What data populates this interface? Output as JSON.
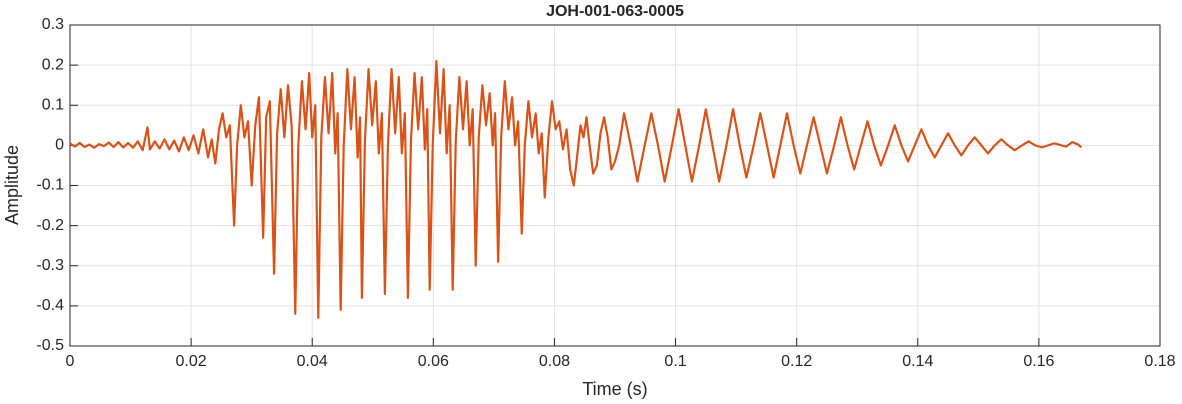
{
  "chart_data": {
    "type": "line",
    "title": "JOH-001-063-0005",
    "x_label": "Time (s)",
    "y_label": "Amplitude",
    "color": "#d95319",
    "grid": true,
    "xlim": [
      0,
      0.18
    ],
    "xticks": [
      0,
      0.02,
      0.04,
      0.06,
      0.08,
      0.1,
      0.12,
      0.14,
      0.16,
      0.18
    ],
    "ylim": [
      -0.5,
      0.3
    ],
    "yticks": [
      -0.5,
      -0.4,
      -0.3,
      -0.2,
      -0.1,
      0,
      0.1,
      0.2,
      0.3
    ],
    "x": [
      0,
      0.0008,
      0.0016,
      0.0024,
      0.0032,
      0.004,
      0.0048,
      0.0056,
      0.0064,
      0.0072,
      0.008,
      0.0088,
      0.0096,
      0.0104,
      0.0112,
      0.012,
      0.0128,
      0.0132,
      0.014,
      0.0148,
      0.0156,
      0.0164,
      0.0172,
      0.018,
      0.0188,
      0.0196,
      0.0204,
      0.0212,
      0.022,
      0.0228,
      0.0234,
      0.024,
      0.0246,
      0.0252,
      0.0258,
      0.0264,
      0.0271,
      0.0276,
      0.0282,
      0.0288,
      0.0294,
      0.03,
      0.0306,
      0.0312,
      0.0319,
      0.0324,
      0.033,
      0.0337,
      0.0342,
      0.0348,
      0.0354,
      0.036,
      0.0366,
      0.0372,
      0.0377,
      0.0383,
      0.0389,
      0.0395,
      0.04,
      0.0405,
      0.041,
      0.0415,
      0.0421,
      0.0427,
      0.0433,
      0.0438,
      0.0442,
      0.0447,
      0.0452,
      0.0458,
      0.0464,
      0.047,
      0.0475,
      0.0479,
      0.0482,
      0.0487,
      0.0493,
      0.0499,
      0.0505,
      0.051,
      0.0515,
      0.052,
      0.0525,
      0.0531,
      0.0537,
      0.0543,
      0.0548,
      0.0553,
      0.0558,
      0.0563,
      0.0569,
      0.0575,
      0.0581,
      0.0586,
      0.059,
      0.0594,
      0.0599,
      0.0605,
      0.0611,
      0.0617,
      0.0622,
      0.0627,
      0.0632,
      0.0637,
      0.0643,
      0.0649,
      0.0655,
      0.066,
      0.0665,
      0.067,
      0.0675,
      0.0681,
      0.0687,
      0.0693,
      0.0698,
      0.0702,
      0.0707,
      0.0712,
      0.0718,
      0.0724,
      0.073,
      0.0735,
      0.074,
      0.0746,
      0.0751,
      0.0757,
      0.0763,
      0.0769,
      0.0774,
      0.0779,
      0.0784,
      0.079,
      0.0796,
      0.0802,
      0.0808,
      0.0814,
      0.082,
      0.0826,
      0.0832,
      0.0838,
      0.0843,
      0.0848,
      0.0853,
      0.0858,
      0.0864,
      0.087,
      0.0876,
      0.0882,
      0.0888,
      0.0894,
      0.09,
      0.0907,
      0.0915,
      0.0926,
      0.0937,
      0.0949,
      0.096,
      0.0971,
      0.0982,
      0.0994,
      0.1005,
      0.1016,
      0.1027,
      0.1039,
      0.105,
      0.1061,
      0.1072,
      0.1084,
      0.1095,
      0.1106,
      0.1117,
      0.1129,
      0.114,
      0.1151,
      0.1162,
      0.1173,
      0.1184,
      0.1195,
      0.1206,
      0.1217,
      0.1228,
      0.1239,
      0.125,
      0.1262,
      0.1273,
      0.1284,
      0.1295,
      0.1306,
      0.1317,
      0.1328,
      0.1339,
      0.1351,
      0.1362,
      0.1373,
      0.1384,
      0.1395,
      0.1406,
      0.1417,
      0.1428,
      0.1439,
      0.145,
      0.1461,
      0.1472,
      0.1483,
      0.1494,
      0.1505,
      0.1516,
      0.1527,
      0.1538,
      0.1549,
      0.156,
      0.1572,
      0.1583,
      0.1594,
      0.1605,
      0.1625,
      0.1645,
      0.1655,
      0.1665,
      0.167
    ],
    "values": [
      0.005,
      -0.003,
      0.006,
      -0.004,
      0.002,
      -0.006,
      0.003,
      -0.002,
      0.007,
      -0.004,
      0.008,
      -0.005,
      0.006,
      -0.006,
      0.01,
      -0.012,
      0.045,
      -0.01,
      0.01,
      -0.008,
      0.015,
      -0.01,
      0.012,
      -0.015,
      0.02,
      -0.012,
      0.025,
      -0.02,
      0.04,
      -0.03,
      0.015,
      -0.045,
      0.04,
      0.08,
      0.02,
      0.05,
      -0.2,
      0.0,
      0.1,
      0.02,
      0.06,
      -0.1,
      0.05,
      0.12,
      -0.23,
      0.07,
      0.11,
      -0.32,
      0.03,
      0.14,
      0.02,
      0.15,
      0.05,
      -0.42,
      0.0,
      0.16,
      0.04,
      0.18,
      0.02,
      0.1,
      -0.43,
      0.02,
      0.17,
      0.03,
      0.18,
      -0.02,
      0.08,
      -0.41,
      0.0,
      0.19,
      0.04,
      0.17,
      -0.03,
      0.07,
      -0.38,
      0.01,
      0.19,
      0.05,
      0.16,
      -0.02,
      0.08,
      -0.37,
      0.0,
      0.19,
      0.03,
      0.17,
      -0.02,
      0.08,
      -0.38,
      0.01,
      0.18,
      0.04,
      0.17,
      -0.01,
      0.09,
      -0.36,
      0.0,
      0.21,
      0.03,
      0.19,
      -0.02,
      0.1,
      -0.36,
      0.01,
      0.17,
      0.04,
      0.16,
      0.0,
      0.09,
      -0.3,
      0.02,
      0.15,
      0.05,
      0.13,
      0.0,
      0.08,
      -0.29,
      0.02,
      0.16,
      0.04,
      0.12,
      0.0,
      0.06,
      -0.22,
      0.0,
      0.11,
      0.02,
      0.08,
      -0.02,
      0.03,
      -0.13,
      0.02,
      0.11,
      0.04,
      0.06,
      -0.01,
      0.04,
      -0.06,
      -0.1,
      -0.02,
      0.05,
      0.02,
      0.07,
      0.0,
      -0.07,
      -0.05,
      0.03,
      0.07,
      0.02,
      -0.06,
      -0.04,
      0.0,
      0.08,
      0.0,
      -0.09,
      0.0,
      0.08,
      0.0,
      -0.09,
      0.0,
      0.09,
      0.0,
      -0.09,
      0.0,
      0.09,
      0.0,
      -0.09,
      0.0,
      0.09,
      0.0,
      -0.08,
      0.0,
      0.08,
      0.0,
      -0.08,
      0.0,
      0.08,
      0.0,
      -0.07,
      0.0,
      0.07,
      0.0,
      -0.07,
      0.0,
      0.07,
      0.0,
      -0.06,
      0.0,
      0.06,
      0.0,
      -0.05,
      0.0,
      0.05,
      0.0,
      -0.04,
      0.0,
      0.04,
      0.0,
      -0.03,
      0.0,
      0.03,
      0.0,
      -0.025,
      0.0,
      0.02,
      0.0,
      -0.02,
      0.0,
      0.015,
      0.0,
      -0.012,
      0.0,
      0.01,
      0.0,
      -0.005,
      0.005,
      -0.003,
      0.008,
      0.002,
      -0.005
    ]
  }
}
